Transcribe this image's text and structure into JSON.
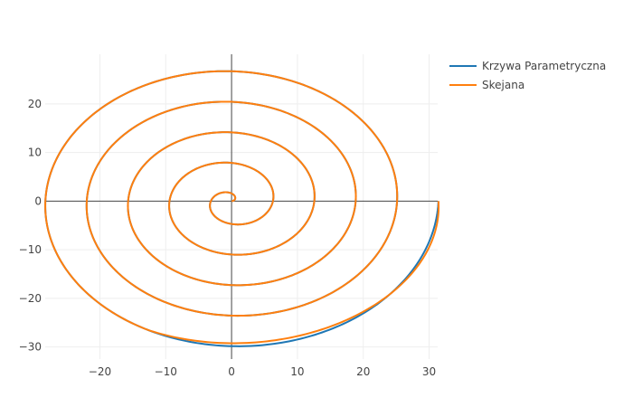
{
  "chart_data": {
    "type": "line",
    "title": "",
    "xlabel": "",
    "ylabel": "",
    "xlim": [
      -28.3,
      31.3
    ],
    "ylim": [
      -32.5,
      30.2
    ],
    "x_ticks": [
      -20,
      -10,
      0,
      10,
      20,
      30
    ],
    "y_ticks": [
      -30,
      -20,
      -10,
      0,
      10,
      20
    ],
    "x_tick_labels": [
      "−20",
      "−10",
      "0",
      "10",
      "20",
      "30"
    ],
    "y_tick_labels": [
      "−30",
      "−20",
      "−10",
      "0",
      "10",
      "20"
    ],
    "grid": true,
    "zero_lines": true,
    "legend_position": "top-right",
    "curve": {
      "form": "archimedean spiral",
      "r_per_radian": 1.0,
      "theta_range": [
        0,
        31.4159
      ],
      "approx_points": [
        {
          "t": 0,
          "x": 0,
          "y": 0
        },
        {
          "t": 1.5708,
          "x": 0,
          "y": 1.57
        },
        {
          "t": 3.1416,
          "x": -3.14,
          "y": 0
        },
        {
          "t": 4.7124,
          "x": 0,
          "y": -4.71
        },
        {
          "t": 6.2832,
          "x": 6.28,
          "y": 0
        },
        {
          "t": 7.854,
          "x": 0,
          "y": 7.85
        },
        {
          "t": 9.4248,
          "x": -9.42,
          "y": 0
        },
        {
          "t": 10.9956,
          "x": 0,
          "y": -11.0
        },
        {
          "t": 12.5664,
          "x": 12.57,
          "y": 0
        },
        {
          "t": 14.1372,
          "x": 0,
          "y": 14.14
        },
        {
          "t": 15.708,
          "x": -15.71,
          "y": 0
        },
        {
          "t": 17.2788,
          "x": 0,
          "y": -17.28
        },
        {
          "t": 18.8496,
          "x": 18.85,
          "y": 0
        },
        {
          "t": 20.4204,
          "x": 0,
          "y": 20.42
        },
        {
          "t": 21.9911,
          "x": -21.99,
          "y": 0
        },
        {
          "t": 23.5619,
          "x": 0,
          "y": -23.56
        },
        {
          "t": 25.1327,
          "x": 25.13,
          "y": 0
        },
        {
          "t": 26.7035,
          "x": 0,
          "y": 26.7
        },
        {
          "t": 28.2743,
          "x": -28.27,
          "y": 0
        },
        {
          "t": 29.8451,
          "x": 0,
          "y": -29.85
        },
        {
          "t": 31.4159,
          "x": 31.42,
          "y": 0
        }
      ]
    },
    "series": [
      {
        "name": "Krzywa Parametryczna",
        "color": "#1f77b4",
        "style": "exact"
      },
      {
        "name": "Skejana",
        "color": "#ff7f0e",
        "style": "spline approximation",
        "end_deviation": {
          "from_theta": 29.4,
          "offset_x": 1.6,
          "offset_y": 1.8
        }
      }
    ]
  }
}
